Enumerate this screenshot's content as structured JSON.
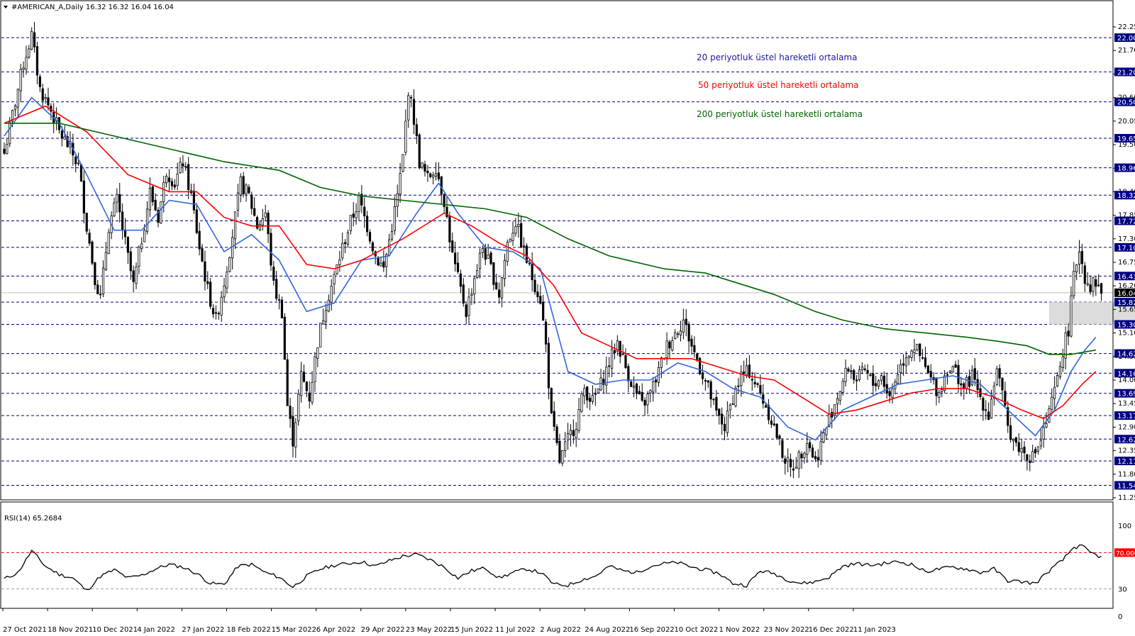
{
  "header": {
    "title": "#AMERICAN_A,Daily  16.32 16.32 16.04 16.04",
    "rsi_label": "RSI(14) 65.2684"
  },
  "legend": [
    {
      "text": "20 periyotluk üstel hareketli ortalama",
      "color": "#1a1aa0"
    },
    {
      "text": "50 periyotluk üstel hareketli ortalama",
      "color": "#ff0000"
    },
    {
      "text": "200 periyotluk üstel hareketli ortalama",
      "color": "#006400"
    }
  ],
  "colors": {
    "ema20": "#3366dd",
    "ema50": "#ff0000",
    "ema200": "#006400",
    "level_line": "#000080",
    "level_label_bg": "#000080",
    "current_label_bg": "#000000",
    "rsi_line": "#000000",
    "rsi_70": "#ff0000",
    "zone": "#dcdcdc"
  },
  "chart_data": {
    "type": "candlestick",
    "symbol": "#AMERICAN_A",
    "timeframe": "Daily",
    "last": {
      "open": 16.32,
      "high": 16.32,
      "low": 16.04,
      "close": 16.04
    },
    "current_price": "16.04",
    "y_ticks": [
      "22.25",
      "21.70",
      "21.15",
      "20.60",
      "20.05",
      "19.50",
      "18.95",
      "18.40",
      "17.85",
      "17.30",
      "16.75",
      "16.20",
      "15.65",
      "15.10",
      "14.55",
      "14.00",
      "13.45",
      "12.90",
      "12.35",
      "11.80",
      "11.25"
    ],
    "price_range": [
      11.25,
      22.25
    ],
    "levels": [
      "22.00",
      "21.20",
      "20.50",
      "19.65",
      "18.96",
      "18.32",
      "17.72",
      "17.10",
      "16.43",
      "15.82",
      "15.30",
      "14.62",
      "14.16",
      "13.69",
      "13.17",
      "12.62",
      "12.11",
      "11.54"
    ],
    "x_ticks": [
      "27 Oct 2021",
      "18 Nov 2021",
      "10 Dec 2021",
      "4 Jan 2022",
      "27 Jan 2022",
      "18 Feb 2022",
      "15 Mar 2022",
      "6 Apr 2022",
      "29 Apr 2022",
      "23 May 2022",
      "15 Jun 2022",
      "11 Jul 2022",
      "2 Aug 2022",
      "24 Aug 2022",
      "16 Sep 2022",
      "10 Oct 2022",
      "1 Nov 2022",
      "23 Nov 2022",
      "16 Dec 2022",
      "11 Jan 2023"
    ],
    "price_path": [
      [
        0,
        19.3
      ],
      [
        3,
        20.2
      ],
      [
        7,
        21.4
      ],
      [
        10,
        22.05
      ],
      [
        13,
        20.8
      ],
      [
        17,
        20.3
      ],
      [
        20,
        19.8
      ],
      [
        24,
        19.4
      ],
      [
        27,
        19.0
      ],
      [
        30,
        17.6
      ],
      [
        33,
        16.4
      ],
      [
        35,
        15.9
      ],
      [
        38,
        17.6
      ],
      [
        41,
        18.2
      ],
      [
        44,
        17.2
      ],
      [
        47,
        16.2
      ],
      [
        50,
        17.3
      ],
      [
        53,
        18.4
      ],
      [
        56,
        17.8
      ],
      [
        59,
        18.9
      ],
      [
        62,
        18.6
      ],
      [
        65,
        19.1
      ],
      [
        68,
        18.3
      ],
      [
        71,
        17.1
      ],
      [
        74,
        16.1
      ],
      [
        77,
        15.4
      ],
      [
        80,
        16.3
      ],
      [
        83,
        17.4
      ],
      [
        86,
        18.6
      ],
      [
        89,
        18.3
      ],
      [
        92,
        17.6
      ],
      [
        95,
        17.9
      ],
      [
        98,
        16.2
      ],
      [
        101,
        15.6
      ],
      [
        103,
        13.4
      ],
      [
        105,
        12.6
      ],
      [
        108,
        14.1
      ],
      [
        111,
        13.6
      ],
      [
        114,
        14.9
      ],
      [
        117,
        15.8
      ],
      [
        120,
        16.4
      ],
      [
        123,
        17.1
      ],
      [
        126,
        17.7
      ],
      [
        129,
        18.2
      ],
      [
        132,
        17.6
      ],
      [
        135,
        16.9
      ],
      [
        138,
        16.6
      ],
      [
        141,
        17.6
      ],
      [
        143,
        18.3
      ],
      [
        145,
        19.2
      ],
      [
        147,
        20.8
      ],
      [
        149,
        20.1
      ],
      [
        151,
        19.1
      ],
      [
        154,
        18.7
      ],
      [
        157,
        19.0
      ],
      [
        160,
        18.2
      ],
      [
        163,
        16.9
      ],
      [
        166,
        16.1
      ],
      [
        168,
        15.6
      ],
      [
        171,
        16.4
      ],
      [
        174,
        17.1
      ],
      [
        177,
        16.6
      ],
      [
        180,
        16.0
      ],
      [
        183,
        17.2
      ],
      [
        186,
        17.7
      ],
      [
        189,
        17.0
      ],
      [
        192,
        16.4
      ],
      [
        195,
        15.9
      ],
      [
        197,
        14.8
      ],
      [
        199,
        13.1
      ],
      [
        202,
        12.1
      ],
      [
        205,
        12.6
      ],
      [
        208,
        13.0
      ],
      [
        211,
        13.8
      ],
      [
        214,
        13.5
      ],
      [
        217,
        13.9
      ],
      [
        220,
        14.4
      ],
      [
        223,
        14.9
      ],
      [
        226,
        14.3
      ],
      [
        229,
        13.8
      ],
      [
        232,
        13.4
      ],
      [
        235,
        13.7
      ],
      [
        238,
        14.2
      ],
      [
        241,
        14.8
      ],
      [
        244,
        15.1
      ],
      [
        247,
        15.4
      ],
      [
        250,
        14.8
      ],
      [
        253,
        14.3
      ],
      [
        256,
        13.8
      ],
      [
        259,
        13.2
      ],
      [
        262,
        12.9
      ],
      [
        265,
        13.6
      ],
      [
        268,
        14.1
      ],
      [
        271,
        14.2
      ],
      [
        274,
        13.8
      ],
      [
        277,
        13.4
      ],
      [
        280,
        12.9
      ],
      [
        283,
        12.3
      ],
      [
        286,
        11.9
      ],
      [
        289,
        12.2
      ],
      [
        292,
        12.6
      ],
      [
        295,
        12.1
      ],
      [
        298,
        12.7
      ],
      [
        301,
        13.3
      ],
      [
        304,
        13.8
      ],
      [
        307,
        14.3
      ],
      [
        310,
        14.0
      ],
      [
        313,
        14.2
      ],
      [
        316,
        13.9
      ],
      [
        319,
        14.1
      ],
      [
        322,
        13.6
      ],
      [
        325,
        14.2
      ],
      [
        328,
        14.6
      ],
      [
        331,
        14.8
      ],
      [
        334,
        14.4
      ],
      [
        337,
        14.0
      ],
      [
        340,
        13.7
      ],
      [
        343,
        14.3
      ],
      [
        346,
        14.2
      ],
      [
        349,
        13.8
      ],
      [
        352,
        14.1
      ],
      [
        355,
        13.6
      ],
      [
        358,
        13.2
      ],
      [
        361,
        14.3
      ],
      [
        363,
        13.6
      ],
      [
        365,
        12.9
      ],
      [
        368,
        12.5
      ],
      [
        371,
        12.3
      ],
      [
        374,
        12.2
      ],
      [
        377,
        12.6
      ],
      [
        380,
        13.2
      ],
      [
        383,
        14.0
      ],
      [
        385,
        14.7
      ],
      [
        387,
        15.2
      ],
      [
        389,
        16.4
      ],
      [
        391,
        17.1
      ],
      [
        393,
        16.4
      ],
      [
        395,
        16.2
      ],
      [
        397,
        16.3
      ],
      [
        399,
        16.04
      ]
    ],
    "ema20_path": [
      [
        0,
        19.7
      ],
      [
        10,
        20.6
      ],
      [
        20,
        20.0
      ],
      [
        30,
        18.8
      ],
      [
        40,
        17.5
      ],
      [
        50,
        17.5
      ],
      [
        60,
        18.2
      ],
      [
        70,
        18.1
      ],
      [
        80,
        17.0
      ],
      [
        90,
        17.4
      ],
      [
        100,
        16.8
      ],
      [
        110,
        15.6
      ],
      [
        120,
        15.8
      ],
      [
        130,
        16.8
      ],
      [
        140,
        16.9
      ],
      [
        150,
        17.9
      ],
      [
        158,
        18.6
      ],
      [
        165,
        17.9
      ],
      [
        175,
        17.1
      ],
      [
        185,
        17.0
      ],
      [
        195,
        16.6
      ],
      [
        205,
        14.2
      ],
      [
        215,
        13.9
      ],
      [
        225,
        14.0
      ],
      [
        235,
        14.0
      ],
      [
        245,
        14.4
      ],
      [
        255,
        14.2
      ],
      [
        265,
        13.8
      ],
      [
        275,
        13.6
      ],
      [
        285,
        12.9
      ],
      [
        295,
        12.6
      ],
      [
        305,
        13.3
      ],
      [
        315,
        13.6
      ],
      [
        325,
        13.9
      ],
      [
        335,
        14.0
      ],
      [
        345,
        14.1
      ],
      [
        355,
        13.9
      ],
      [
        365,
        13.3
      ],
      [
        375,
        12.7
      ],
      [
        382,
        13.3
      ],
      [
        388,
        14.2
      ],
      [
        393,
        14.7
      ],
      [
        397,
        15.0
      ]
    ],
    "ema50_path": [
      [
        0,
        20.0
      ],
      [
        15,
        20.4
      ],
      [
        30,
        19.8
      ],
      [
        45,
        18.8
      ],
      [
        60,
        18.4
      ],
      [
        70,
        18.4
      ],
      [
        80,
        17.8
      ],
      [
        90,
        17.6
      ],
      [
        100,
        17.6
      ],
      [
        110,
        16.7
      ],
      [
        120,
        16.6
      ],
      [
        130,
        16.8
      ],
      [
        145,
        17.3
      ],
      [
        160,
        17.9
      ],
      [
        170,
        17.6
      ],
      [
        180,
        17.2
      ],
      [
        190,
        16.9
      ],
      [
        200,
        16.2
      ],
      [
        210,
        15.1
      ],
      [
        220,
        14.8
      ],
      [
        230,
        14.5
      ],
      [
        240,
        14.5
      ],
      [
        250,
        14.5
      ],
      [
        260,
        14.3
      ],
      [
        270,
        14.1
      ],
      [
        280,
        14.0
      ],
      [
        290,
        13.6
      ],
      [
        300,
        13.2
      ],
      [
        310,
        13.3
      ],
      [
        320,
        13.5
      ],
      [
        330,
        13.7
      ],
      [
        340,
        13.8
      ],
      [
        350,
        13.8
      ],
      [
        360,
        13.6
      ],
      [
        370,
        13.3
      ],
      [
        378,
        13.1
      ],
      [
        385,
        13.4
      ],
      [
        392,
        13.9
      ],
      [
        397,
        14.2
      ]
    ],
    "ema200_path": [
      [
        0,
        20.0
      ],
      [
        20,
        20.0
      ],
      [
        40,
        19.7
      ],
      [
        60,
        19.4
      ],
      [
        80,
        19.1
      ],
      [
        100,
        18.9
      ],
      [
        115,
        18.5
      ],
      [
        130,
        18.3
      ],
      [
        145,
        18.2
      ],
      [
        160,
        18.1
      ],
      [
        175,
        18.0
      ],
      [
        190,
        17.8
      ],
      [
        205,
        17.3
      ],
      [
        220,
        16.9
      ],
      [
        240,
        16.6
      ],
      [
        255,
        16.5
      ],
      [
        265,
        16.3
      ],
      [
        280,
        16.0
      ],
      [
        295,
        15.6
      ],
      [
        305,
        15.4
      ],
      [
        320,
        15.2
      ],
      [
        335,
        15.1
      ],
      [
        350,
        15.0
      ],
      [
        362,
        14.9
      ],
      [
        372,
        14.8
      ],
      [
        380,
        14.6
      ],
      [
        388,
        14.6
      ],
      [
        397,
        14.7
      ]
    ],
    "zone": {
      "from_bar": 380,
      "to_bar": 421,
      "top": 15.82,
      "bottom": 15.3
    },
    "rsi": {
      "name": "RSI(14)",
      "last": "65.2684",
      "ticks": [
        "100",
        "70.0000",
        "30",
        "0"
      ],
      "levels": [
        70,
        30
      ],
      "range": [
        0,
        100
      ],
      "path": [
        [
          0,
          41
        ],
        [
          5,
          48
        ],
        [
          10,
          72
        ],
        [
          15,
          55
        ],
        [
          20,
          46
        ],
        [
          25,
          42
        ],
        [
          30,
          28
        ],
        [
          35,
          44
        ],
        [
          40,
          51
        ],
        [
          45,
          42
        ],
        [
          50,
          45
        ],
        [
          55,
          52
        ],
        [
          60,
          57
        ],
        [
          65,
          54
        ],
        [
          70,
          47
        ],
        [
          75,
          36
        ],
        [
          80,
          35
        ],
        [
          85,
          55
        ],
        [
          90,
          57
        ],
        [
          95,
          48
        ],
        [
          100,
          43
        ],
        [
          105,
          32
        ],
        [
          110,
          44
        ],
        [
          115,
          52
        ],
        [
          120,
          56
        ],
        [
          125,
          58
        ],
        [
          130,
          60
        ],
        [
          135,
          55
        ],
        [
          140,
          61
        ],
        [
          145,
          66
        ],
        [
          150,
          68
        ],
        [
          155,
          62
        ],
        [
          160,
          54
        ],
        [
          165,
          42
        ],
        [
          170,
          50
        ],
        [
          175,
          53
        ],
        [
          180,
          42
        ],
        [
          185,
          48
        ],
        [
          190,
          52
        ],
        [
          195,
          48
        ],
        [
          200,
          35
        ],
        [
          205,
          34
        ],
        [
          210,
          40
        ],
        [
          215,
          44
        ],
        [
          220,
          55
        ],
        [
          225,
          50
        ],
        [
          230,
          48
        ],
        [
          235,
          55
        ],
        [
          240,
          58
        ],
        [
          245,
          59
        ],
        [
          250,
          54
        ],
        [
          255,
          51
        ],
        [
          260,
          47
        ],
        [
          265,
          36
        ],
        [
          270,
          34
        ],
        [
          275,
          50
        ],
        [
          280,
          47
        ],
        [
          285,
          40
        ],
        [
          290,
          36
        ],
        [
          295,
          38
        ],
        [
          300,
          43
        ],
        [
          305,
          55
        ],
        [
          310,
          58
        ],
        [
          315,
          56
        ],
        [
          320,
          58
        ],
        [
          325,
          60
        ],
        [
          330,
          57
        ],
        [
          335,
          49
        ],
        [
          340,
          52
        ],
        [
          345,
          54
        ],
        [
          350,
          52
        ],
        [
          355,
          48
        ],
        [
          360,
          52
        ],
        [
          365,
          39
        ],
        [
          370,
          38
        ],
        [
          375,
          36
        ],
        [
          380,
          50
        ],
        [
          385,
          62
        ],
        [
          389,
          76
        ],
        [
          392,
          77
        ],
        [
          395,
          70
        ],
        [
          399,
          65
        ]
      ]
    }
  }
}
